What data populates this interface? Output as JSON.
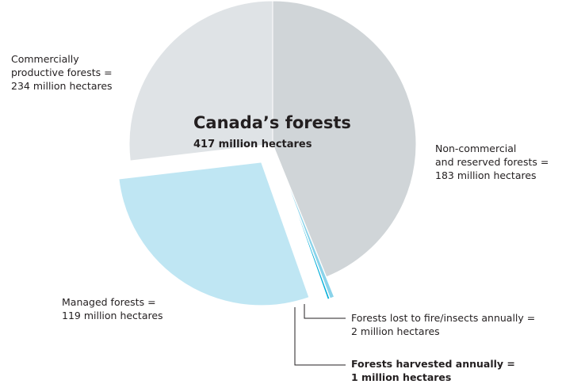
{
  "chart_data": {
    "type": "pie",
    "title": "Canada’s forests",
    "subtitle": "417 million hectares",
    "slices": [
      {
        "key": "non_commercial",
        "label_lines": [
          "Non-commercial",
          "and reserved forests =",
          "183 million hectares"
        ],
        "value": 183,
        "color": "#d0d5d8",
        "exploded": false
      },
      {
        "key": "fire_insects",
        "label_lines": [
          "Forests lost to fire/insects annually =",
          "2 million hectares"
        ],
        "value": 2,
        "color": "#8ad3ea",
        "exploded": true
      },
      {
        "key": "harvested",
        "label_lines": [
          "Forests harvested annually =",
          "1 million hectares"
        ],
        "value": 1,
        "color": "#00aed9",
        "exploded": true,
        "bold": true
      },
      {
        "key": "managed",
        "label_lines": [
          "Managed forests =",
          "119 million hectares"
        ],
        "value": 119,
        "color": "#bfe6f3",
        "exploded": true
      },
      {
        "key": "commercial_remainder",
        "label_lines": [],
        "value": 112,
        "color": "#dfe3e6",
        "exploded": false
      }
    ],
    "group_label": {
      "label_lines": [
        "Commercially",
        "productive forests =",
        "234 million hectares"
      ],
      "value": 234
    }
  }
}
